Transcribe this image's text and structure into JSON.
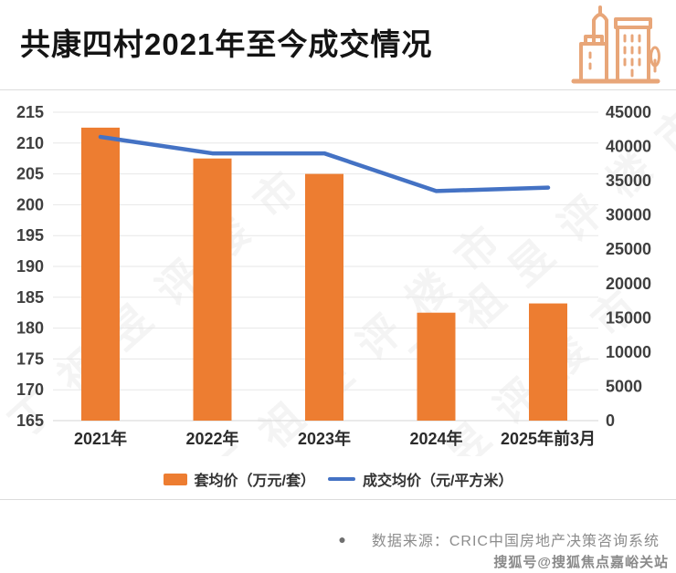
{
  "header": {
    "title": "共康四村2021年至今成交情况",
    "accent_color": "#E8A679"
  },
  "chart_data": {
    "type": "bar",
    "subtype": "bar+line combo, dual y-axis",
    "categories": [
      "2021年",
      "2022年",
      "2023年",
      "2024年",
      "2025年前3月"
    ],
    "series": [
      {
        "name": "套均价（万元/套）",
        "type": "bar",
        "axis": "left",
        "color": "#ED7D31",
        "values": [
          212.5,
          207.5,
          205,
          182.5,
          184
        ]
      },
      {
        "name": "成交均价（元/平方米）",
        "type": "line",
        "axis": "right",
        "color": "#4472C4",
        "values": [
          41400,
          39000,
          39000,
          33500,
          34000
        ]
      }
    ],
    "left_axis": {
      "min": 165,
      "max": 215,
      "step": 5,
      "ticks": [
        215,
        210,
        205,
        200,
        195,
        190,
        185,
        180,
        175,
        170,
        165
      ]
    },
    "right_axis": {
      "min": 0,
      "max": 45000,
      "step": 5000,
      "ticks": [
        45000,
        40000,
        35000,
        30000,
        25000,
        20000,
        15000,
        10000,
        5000,
        0
      ]
    },
    "title": "共康四村2021年至今成交情况",
    "xlabel": "",
    "ylabel": "",
    "grid": true,
    "legend_position": "bottom",
    "gridline_color": "#e7e7e7",
    "axis_label_color": "#3f3f3f"
  },
  "legend": {
    "bar_label": "套均价（万元/套）",
    "line_label": "成交均价（元/平方米）"
  },
  "footer": {
    "bullet": "●",
    "source": "数据来源：CRIC中国房地产决策咨询系统",
    "watermark": "搜狐号@搜狐焦点嘉峪关站"
  },
  "background_watermark": "丁祖昱评楼市"
}
